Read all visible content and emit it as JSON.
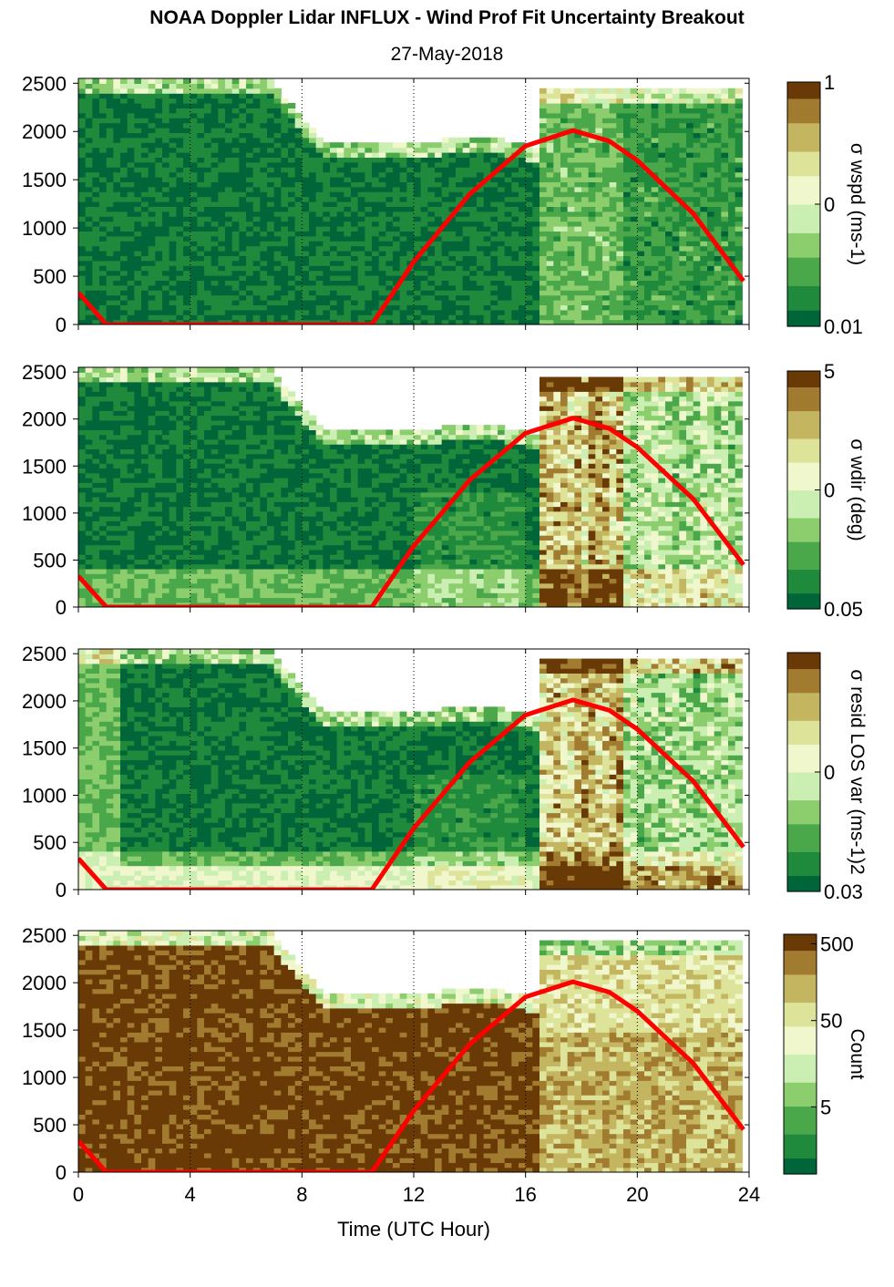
{
  "title": "NOAA Doppler Lidar INFLUX - Wind Prof Fit Uncertainty Breakout",
  "subtitle": "27-May-2018",
  "colors": {
    "sun_curve": "#ff0000",
    "colormap": [
      "#00663a",
      "#1f8a3c",
      "#4aa84b",
      "#8ccd6e",
      "#cbeeb3",
      "#f0f7cc",
      "#dde49a",
      "#c4b560",
      "#a17b30",
      "#6a3a06"
    ]
  },
  "chart_data": [
    {
      "type": "heatmap",
      "xlabel": "",
      "ylabel": "",
      "xlim": [
        0,
        24
      ],
      "ylim": [
        0,
        2550
      ],
      "x_ticks": [
        "",
        "",
        "",
        "",
        "",
        "",
        ""
      ],
      "y_ticks": [
        "0",
        "500",
        "1000",
        "1500",
        "2000",
        "2500"
      ],
      "colorbar": {
        "label": "σ wspd (ms-1)",
        "ticks": [
          "1",
          "0",
          "0.01"
        ],
        "scale": "log"
      },
      "vertical_dotted_lines_hours": [
        4,
        8,
        12,
        16,
        20,
        24
      ],
      "overlay_series": {
        "x": [
          0,
          1,
          10.5,
          12,
          14,
          16,
          17.7,
          19,
          20,
          22,
          23.8
        ],
        "y": [
          330,
          0,
          0,
          650,
          1350,
          1850,
          2010,
          1900,
          1700,
          1150,
          450
        ]
      }
    },
    {
      "type": "heatmap",
      "xlabel": "",
      "ylabel": "",
      "xlim": [
        0,
        24
      ],
      "ylim": [
        0,
        2550
      ],
      "x_ticks": [
        "",
        "",
        "",
        "",
        "",
        "",
        ""
      ],
      "y_ticks": [
        "0",
        "500",
        "1000",
        "1500",
        "2000",
        "2500"
      ],
      "colorbar": {
        "label": "σ wdir (deg)",
        "ticks": [
          "5",
          "0",
          "0.05"
        ],
        "scale": "log"
      },
      "vertical_dotted_lines_hours": [
        4,
        8,
        12,
        16,
        20,
        24
      ],
      "overlay_series": {
        "x": [
          0,
          1,
          10.5,
          12,
          14,
          16,
          17.7,
          19,
          20,
          22,
          23.8
        ],
        "y": [
          330,
          0,
          0,
          650,
          1350,
          1850,
          2010,
          1900,
          1700,
          1150,
          450
        ]
      }
    },
    {
      "type": "heatmap",
      "xlabel": "",
      "ylabel": "",
      "xlim": [
        0,
        24
      ],
      "ylim": [
        0,
        2550
      ],
      "x_ticks": [
        "",
        "",
        "",
        "",
        "",
        "",
        ""
      ],
      "y_ticks": [
        "0",
        "500",
        "1000",
        "1500",
        "2000",
        "2500"
      ],
      "colorbar": {
        "label": "σ resid LOS var (ms-1)2",
        "ticks": [
          "",
          "0",
          "0.03"
        ],
        "scale": "log"
      },
      "vertical_dotted_lines_hours": [
        4,
        8,
        12,
        16,
        20,
        24
      ],
      "overlay_series": {
        "x": [
          0,
          1,
          10.5,
          12,
          14,
          16,
          17.7,
          19,
          20,
          22,
          23.8
        ],
        "y": [
          330,
          0,
          0,
          650,
          1350,
          1850,
          2010,
          1900,
          1700,
          1150,
          450
        ]
      }
    },
    {
      "type": "heatmap",
      "xlabel": "Time (UTC Hour)",
      "ylabel": "",
      "xlim": [
        0,
        24
      ],
      "ylim": [
        0,
        2550
      ],
      "x_ticks": [
        "0",
        "4",
        "8",
        "12",
        "16",
        "20",
        "24"
      ],
      "y_ticks": [
        "0",
        "500",
        "1000",
        "1500",
        "2000",
        "2500"
      ],
      "colorbar": {
        "label": "Count",
        "ticks": [
          "500",
          "50",
          "5"
        ],
        "scale": "log"
      },
      "vertical_dotted_lines_hours": [
        4,
        8,
        12,
        16,
        20,
        24
      ],
      "overlay_series": {
        "x": [
          0,
          1,
          10.5,
          12,
          14,
          16,
          17.7,
          19,
          20,
          22,
          23.8
        ],
        "y": [
          330,
          0,
          0,
          650,
          1350,
          1850,
          2010,
          1900,
          1700,
          1150,
          450
        ]
      }
    }
  ]
}
